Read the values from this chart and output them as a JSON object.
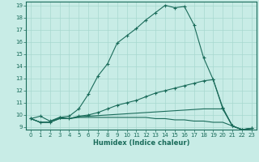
{
  "xlabel": "Humidex (Indice chaleur)",
  "bg_color": "#c8ece6",
  "grid_color": "#a8d8d0",
  "line_color": "#1a6b5a",
  "xlim": [
    -0.5,
    23.5
  ],
  "ylim": [
    8.8,
    19.3
  ],
  "xticks": [
    0,
    1,
    2,
    3,
    4,
    5,
    6,
    7,
    8,
    9,
    10,
    11,
    12,
    13,
    14,
    15,
    16,
    17,
    18,
    19,
    20,
    21,
    22,
    23
  ],
  "yticks": [
    9,
    10,
    11,
    12,
    13,
    14,
    15,
    16,
    17,
    18,
    19
  ],
  "lines": [
    {
      "x": [
        0,
        1,
        2,
        3,
        4,
        5,
        6,
        7,
        8,
        9,
        10,
        11,
        12,
        13,
        14,
        15,
        16,
        17,
        18,
        19,
        20,
        21,
        22,
        23
      ],
      "y": [
        9.7,
        9.9,
        9.5,
        9.8,
        9.9,
        10.5,
        11.7,
        13.2,
        14.2,
        15.9,
        16.5,
        17.1,
        17.8,
        18.4,
        19.0,
        18.8,
        18.9,
        17.4,
        14.7,
        12.9,
        10.6,
        9.1,
        8.8,
        8.9
      ],
      "marker": "+"
    },
    {
      "x": [
        0,
        1,
        2,
        3,
        4,
        5,
        6,
        7,
        8,
        9,
        10,
        11,
        12,
        13,
        14,
        15,
        16,
        17,
        18,
        19,
        20,
        21,
        22,
        23
      ],
      "y": [
        9.7,
        9.4,
        9.4,
        9.8,
        9.7,
        9.9,
        10.0,
        10.2,
        10.5,
        10.8,
        11.0,
        11.2,
        11.5,
        11.8,
        12.0,
        12.2,
        12.4,
        12.6,
        12.8,
        12.9,
        10.5,
        9.1,
        8.8,
        8.9
      ],
      "marker": "+"
    },
    {
      "x": [
        0,
        1,
        2,
        3,
        4,
        5,
        6,
        7,
        8,
        9,
        10,
        11,
        12,
        13,
        14,
        15,
        16,
        17,
        18,
        19,
        20,
        21,
        22,
        23
      ],
      "y": [
        9.7,
        9.4,
        9.4,
        9.7,
        9.7,
        9.8,
        9.8,
        9.8,
        9.8,
        9.8,
        9.8,
        9.8,
        9.8,
        9.7,
        9.7,
        9.6,
        9.6,
        9.5,
        9.5,
        9.4,
        9.4,
        9.1,
        8.8,
        8.9
      ],
      "marker": null
    },
    {
      "x": [
        0,
        1,
        2,
        3,
        4,
        5,
        6,
        7,
        8,
        9,
        10,
        11,
        12,
        13,
        14,
        15,
        16,
        17,
        18,
        19,
        20,
        21,
        22,
        23
      ],
      "y": [
        9.7,
        9.4,
        9.4,
        9.7,
        9.7,
        9.85,
        9.9,
        9.95,
        10.0,
        10.05,
        10.1,
        10.15,
        10.2,
        10.25,
        10.3,
        10.35,
        10.4,
        10.45,
        10.5,
        10.5,
        10.5,
        9.1,
        8.8,
        8.9
      ],
      "marker": null
    }
  ]
}
